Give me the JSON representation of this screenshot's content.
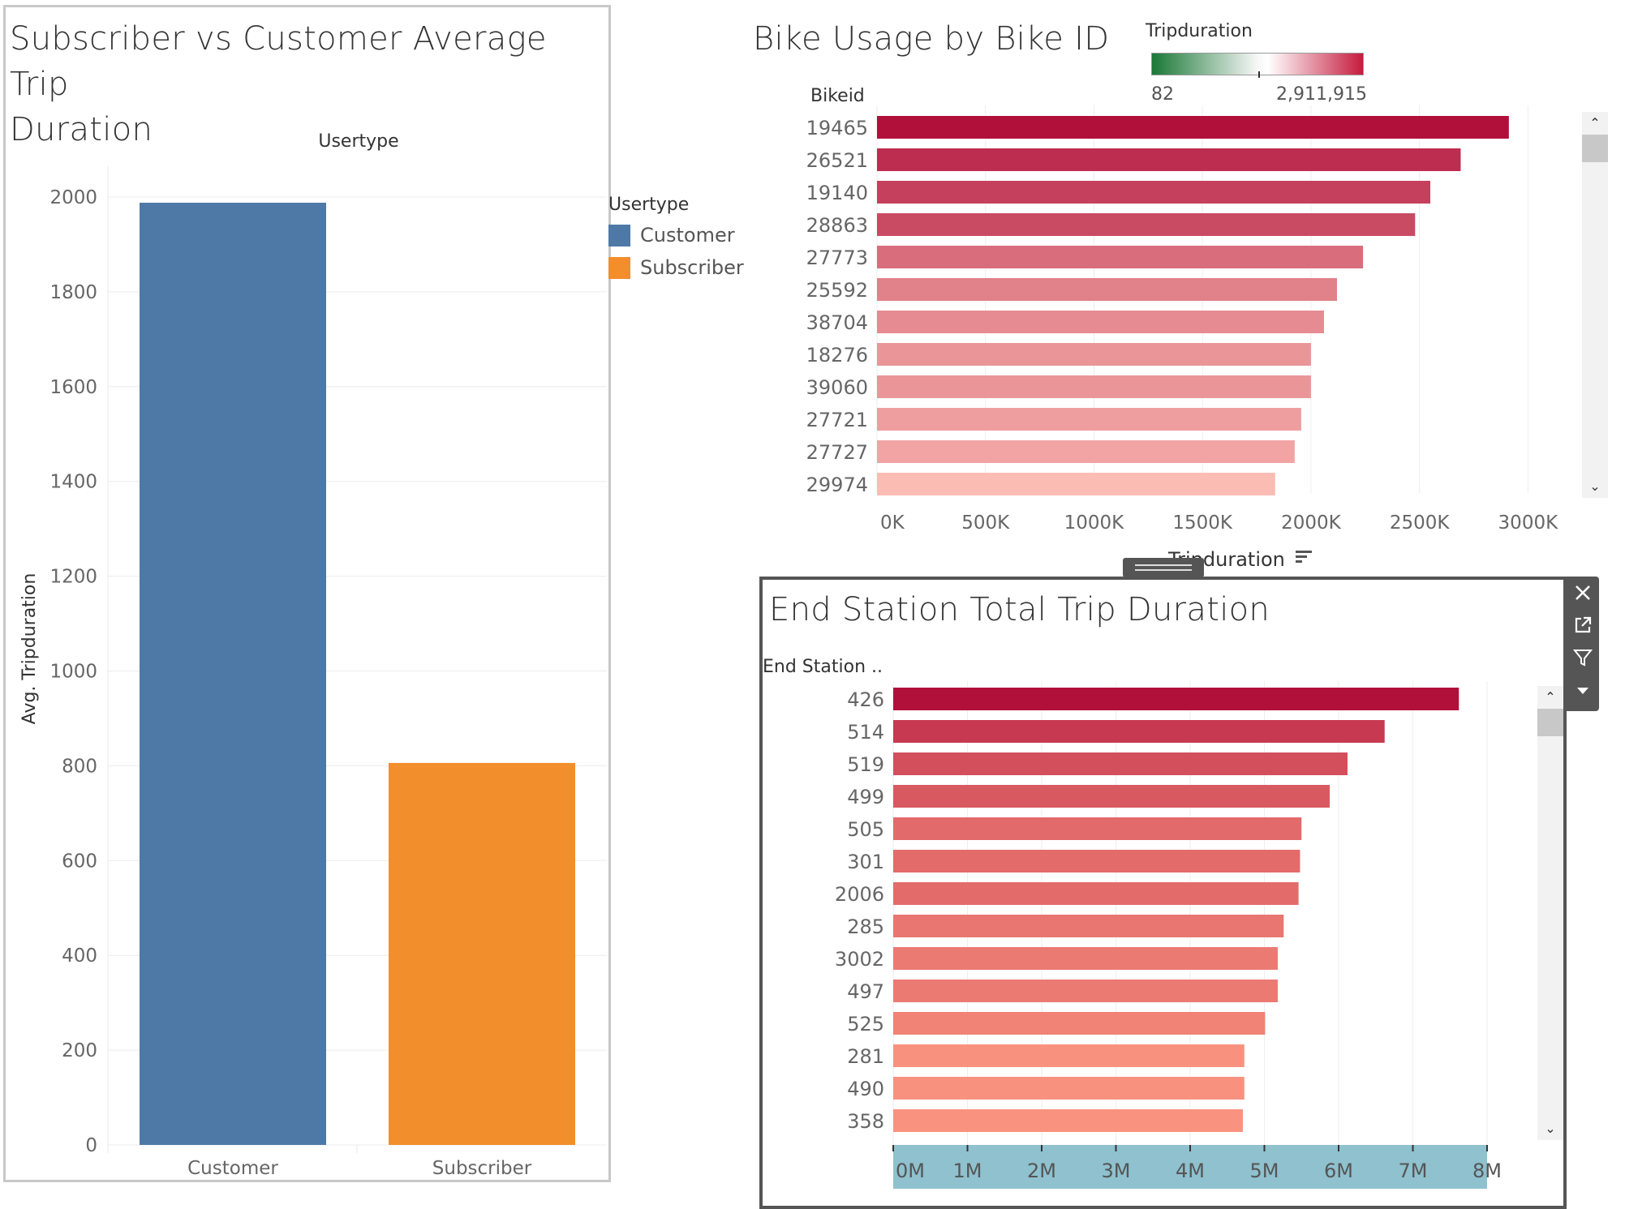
{
  "left_panel": {
    "title_line1": "Subscriber vs Customer Average Trip",
    "title_line2": "Duration",
    "column_header": "Usertype",
    "y_axis_label": "Avg. Tripduration"
  },
  "legend_usertype": {
    "title": "Usertype",
    "items": [
      {
        "label": "Customer",
        "color": "#4e79a7"
      },
      {
        "label": "Subscriber",
        "color": "#f28e2b"
      }
    ]
  },
  "top_right": {
    "title": "Bike Usage by Bike ID",
    "row_header": "Bikeid",
    "x_axis_label": "Tripduration",
    "sort_icon": "sort-descending-icon"
  },
  "color_legend": {
    "title": "Tripduration",
    "min_label": "82",
    "max_label": "2,911,915",
    "colors": [
      "#1a7837",
      "#f7f7f7",
      "#c51b3d"
    ]
  },
  "bottom_right": {
    "title": "End Station Total Trip Duration",
    "row_header": "End Station .."
  },
  "toolbar": {
    "icons": [
      "close-icon",
      "external-link-icon",
      "filter-icon",
      "chevron-down-icon"
    ]
  },
  "chart_data": [
    {
      "type": "bar",
      "orientation": "vertical",
      "title": "Subscriber vs Customer Average Trip Duration",
      "xlabel": "Usertype",
      "ylabel": "Avg. Tripduration",
      "categories": [
        "Customer",
        "Subscriber"
      ],
      "values": [
        1988,
        806
      ],
      "colors": [
        "#4e79a7",
        "#f28e2b"
      ],
      "ylim": [
        0,
        2000
      ],
      "yticks": [
        0,
        200,
        400,
        600,
        800,
        1000,
        1200,
        1400,
        1600,
        1800,
        2000
      ],
      "grid": true,
      "legend": "right"
    },
    {
      "type": "bar",
      "orientation": "horizontal",
      "title": "Bike Usage by Bike ID",
      "xlabel": "Tripduration",
      "ylabel": "Bikeid",
      "categories": [
        "19465",
        "26521",
        "19140",
        "28863",
        "27773",
        "25592",
        "38704",
        "18276",
        "39060",
        "27721",
        "27727",
        "29974"
      ],
      "values": [
        2912000,
        2690000,
        2550000,
        2480000,
        2240000,
        2120000,
        2060000,
        2000000,
        2000000,
        1955000,
        1925000,
        1835000
      ],
      "xlim": [
        0,
        3000000
      ],
      "xticks": [
        0,
        500000,
        1000000,
        1500000,
        2000000,
        2500000,
        3000000
      ],
      "xtick_labels": [
        "0K",
        "500K",
        "1000K",
        "1500K",
        "2000K",
        "2500K",
        "3000K"
      ],
      "grid": true,
      "color_scale": {
        "min": 82,
        "max": 2911915
      }
    },
    {
      "type": "bar",
      "orientation": "horizontal",
      "title": "End Station Total Trip Duration",
      "ylabel": "End Station ..",
      "categories": [
        "426",
        "514",
        "519",
        "499",
        "505",
        "301",
        "2006",
        "285",
        "3002",
        "497",
        "525",
        "281",
        "490",
        "358"
      ],
      "values": [
        7620000,
        6620000,
        6120000,
        5880000,
        5500000,
        5480000,
        5460000,
        5260000,
        5180000,
        5180000,
        5010000,
        4730000,
        4730000,
        4710000
      ],
      "xlim": [
        0,
        8000000
      ],
      "xticks": [
        0,
        1000000,
        2000000,
        3000000,
        4000000,
        5000000,
        6000000,
        7000000,
        8000000
      ],
      "xtick_labels": [
        "0M",
        "1M",
        "2M",
        "3M",
        "4M",
        "5M",
        "6M",
        "7M",
        "8M"
      ],
      "grid": true
    }
  ]
}
